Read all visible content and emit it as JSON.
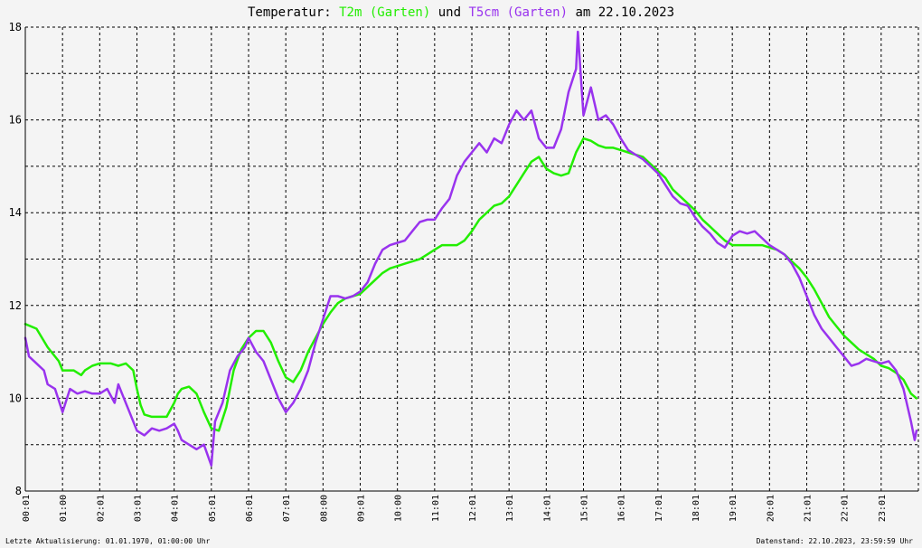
{
  "chart_data": {
    "type": "line",
    "title": {
      "prefix": "Temperatur: ",
      "series1_label": "T2m (Garten)",
      "connector": " und ",
      "series2_label": "T5cm (Garten)",
      "suffix": " am 22.10.2023"
    },
    "xlabel": "",
    "ylabel": "",
    "ylim": [
      8,
      18
    ],
    "yticks": [
      "8",
      "10",
      "12",
      "14",
      "16",
      "18"
    ],
    "xlim": [
      0,
      24
    ],
    "xticks": [
      "00:01",
      "01:00",
      "02:01",
      "03:01",
      "04:01",
      "05:01",
      "06:01",
      "07:01",
      "08:00",
      "09:01",
      "10:00",
      "11:01",
      "12:01",
      "13:01",
      "14:01",
      "15:01",
      "16:01",
      "17:01",
      "18:01",
      "19:01",
      "20:01",
      "21:01",
      "22:01",
      "23:01"
    ],
    "grid": true,
    "series": [
      {
        "name": "T2m (Garten)",
        "color": "#22ee00",
        "points": [
          [
            0,
            11.6
          ],
          [
            0.3,
            11.5
          ],
          [
            0.6,
            11.1
          ],
          [
            0.9,
            10.8
          ],
          [
            1.0,
            10.6
          ],
          [
            1.3,
            10.6
          ],
          [
            1.5,
            10.5
          ],
          [
            1.6,
            10.6
          ],
          [
            1.8,
            10.7
          ],
          [
            2.0,
            10.75
          ],
          [
            2.3,
            10.75
          ],
          [
            2.5,
            10.7
          ],
          [
            2.7,
            10.75
          ],
          [
            2.9,
            10.6
          ],
          [
            3.0,
            10.2
          ],
          [
            3.1,
            9.85
          ],
          [
            3.2,
            9.65
          ],
          [
            3.4,
            9.6
          ],
          [
            3.6,
            9.6
          ],
          [
            3.8,
            9.6
          ],
          [
            4.0,
            9.9
          ],
          [
            4.1,
            10.1
          ],
          [
            4.2,
            10.2
          ],
          [
            4.4,
            10.25
          ],
          [
            4.6,
            10.1
          ],
          [
            4.8,
            9.7
          ],
          [
            5.0,
            9.35
          ],
          [
            5.2,
            9.3
          ],
          [
            5.4,
            9.8
          ],
          [
            5.6,
            10.6
          ],
          [
            5.8,
            11.05
          ],
          [
            6.0,
            11.3
          ],
          [
            6.2,
            11.45
          ],
          [
            6.4,
            11.45
          ],
          [
            6.6,
            11.2
          ],
          [
            6.8,
            10.8
          ],
          [
            7.0,
            10.45
          ],
          [
            7.2,
            10.35
          ],
          [
            7.4,
            10.6
          ],
          [
            7.6,
            11.0
          ],
          [
            7.8,
            11.3
          ],
          [
            8.0,
            11.6
          ],
          [
            8.2,
            11.85
          ],
          [
            8.4,
            12.05
          ],
          [
            8.6,
            12.15
          ],
          [
            8.8,
            12.2
          ],
          [
            9.0,
            12.25
          ],
          [
            9.2,
            12.4
          ],
          [
            9.4,
            12.55
          ],
          [
            9.6,
            12.7
          ],
          [
            9.8,
            12.8
          ],
          [
            10.0,
            12.85
          ],
          [
            10.2,
            12.9
          ],
          [
            10.4,
            12.95
          ],
          [
            10.6,
            13.0
          ],
          [
            10.8,
            13.1
          ],
          [
            11.0,
            13.2
          ],
          [
            11.2,
            13.3
          ],
          [
            11.4,
            13.3
          ],
          [
            11.6,
            13.3
          ],
          [
            11.8,
            13.4
          ],
          [
            12.0,
            13.6
          ],
          [
            12.2,
            13.85
          ],
          [
            12.4,
            14.0
          ],
          [
            12.6,
            14.15
          ],
          [
            12.8,
            14.2
          ],
          [
            13.0,
            14.35
          ],
          [
            13.2,
            14.6
          ],
          [
            13.4,
            14.85
          ],
          [
            13.6,
            15.1
          ],
          [
            13.8,
            15.2
          ],
          [
            14.0,
            14.95
          ],
          [
            14.2,
            14.85
          ],
          [
            14.4,
            14.8
          ],
          [
            14.6,
            14.85
          ],
          [
            14.8,
            15.3
          ],
          [
            15.0,
            15.6
          ],
          [
            15.2,
            15.55
          ],
          [
            15.4,
            15.45
          ],
          [
            15.6,
            15.4
          ],
          [
            15.8,
            15.4
          ],
          [
            16.0,
            15.35
          ],
          [
            16.2,
            15.3
          ],
          [
            16.4,
            15.25
          ],
          [
            16.6,
            15.2
          ],
          [
            16.8,
            15.05
          ],
          [
            17.0,
            14.9
          ],
          [
            17.2,
            14.75
          ],
          [
            17.4,
            14.5
          ],
          [
            17.6,
            14.35
          ],
          [
            17.8,
            14.2
          ],
          [
            18.0,
            14.05
          ],
          [
            18.2,
            13.85
          ],
          [
            18.4,
            13.7
          ],
          [
            18.6,
            13.55
          ],
          [
            18.8,
            13.4
          ],
          [
            19.0,
            13.3
          ],
          [
            19.4,
            13.3
          ],
          [
            19.8,
            13.3
          ],
          [
            20.0,
            13.25
          ],
          [
            20.2,
            13.2
          ],
          [
            20.4,
            13.1
          ],
          [
            20.6,
            12.95
          ],
          [
            20.8,
            12.8
          ],
          [
            21.0,
            12.6
          ],
          [
            21.2,
            12.35
          ],
          [
            21.4,
            12.05
          ],
          [
            21.6,
            11.75
          ],
          [
            21.8,
            11.55
          ],
          [
            22.0,
            11.35
          ],
          [
            22.2,
            11.2
          ],
          [
            22.4,
            11.05
          ],
          [
            22.6,
            10.95
          ],
          [
            22.8,
            10.85
          ],
          [
            23.0,
            10.7
          ],
          [
            23.2,
            10.65
          ],
          [
            23.4,
            10.55
          ],
          [
            23.6,
            10.4
          ],
          [
            23.8,
            10.1
          ],
          [
            23.95,
            10.0
          ]
        ]
      },
      {
        "name": "T5cm (Garten)",
        "color": "#9933ee",
        "points": [
          [
            0,
            11.3
          ],
          [
            0.1,
            10.9
          ],
          [
            0.3,
            10.75
          ],
          [
            0.5,
            10.6
          ],
          [
            0.6,
            10.3
          ],
          [
            0.8,
            10.2
          ],
          [
            1.0,
            9.7
          ],
          [
            1.2,
            10.2
          ],
          [
            1.4,
            10.1
          ],
          [
            1.6,
            10.15
          ],
          [
            1.8,
            10.1
          ],
          [
            2.0,
            10.1
          ],
          [
            2.2,
            10.2
          ],
          [
            2.4,
            9.9
          ],
          [
            2.5,
            10.3
          ],
          [
            2.6,
            10.1
          ],
          [
            2.8,
            9.7
          ],
          [
            3.0,
            9.3
          ],
          [
            3.2,
            9.2
          ],
          [
            3.4,
            9.35
          ],
          [
            3.6,
            9.3
          ],
          [
            3.8,
            9.35
          ],
          [
            4.0,
            9.45
          ],
          [
            4.1,
            9.3
          ],
          [
            4.2,
            9.1
          ],
          [
            4.4,
            9.0
          ],
          [
            4.6,
            8.9
          ],
          [
            4.8,
            9.0
          ],
          [
            5.0,
            8.55
          ],
          [
            5.1,
            9.5
          ],
          [
            5.3,
            9.9
          ],
          [
            5.5,
            10.6
          ],
          [
            5.7,
            10.9
          ],
          [
            5.9,
            11.1
          ],
          [
            6.0,
            11.3
          ],
          [
            6.2,
            11.0
          ],
          [
            6.4,
            10.8
          ],
          [
            6.6,
            10.4
          ],
          [
            6.8,
            10.0
          ],
          [
            7.0,
            9.7
          ],
          [
            7.2,
            9.9
          ],
          [
            7.4,
            10.2
          ],
          [
            7.6,
            10.6
          ],
          [
            7.8,
            11.2
          ],
          [
            8.0,
            11.7
          ],
          [
            8.2,
            12.2
          ],
          [
            8.4,
            12.2
          ],
          [
            8.6,
            12.15
          ],
          [
            8.8,
            12.2
          ],
          [
            9.0,
            12.3
          ],
          [
            9.2,
            12.5
          ],
          [
            9.4,
            12.9
          ],
          [
            9.6,
            13.2
          ],
          [
            9.8,
            13.3
          ],
          [
            10.0,
            13.35
          ],
          [
            10.2,
            13.4
          ],
          [
            10.4,
            13.6
          ],
          [
            10.6,
            13.8
          ],
          [
            10.8,
            13.85
          ],
          [
            11.0,
            13.85
          ],
          [
            11.2,
            14.1
          ],
          [
            11.4,
            14.3
          ],
          [
            11.6,
            14.8
          ],
          [
            11.8,
            15.1
          ],
          [
            12.0,
            15.3
          ],
          [
            12.2,
            15.5
          ],
          [
            12.4,
            15.3
          ],
          [
            12.6,
            15.6
          ],
          [
            12.8,
            15.5
          ],
          [
            13.0,
            15.9
          ],
          [
            13.2,
            16.2
          ],
          [
            13.4,
            16.0
          ],
          [
            13.6,
            16.2
          ],
          [
            13.8,
            15.6
          ],
          [
            14.0,
            15.4
          ],
          [
            14.2,
            15.4
          ],
          [
            14.4,
            15.8
          ],
          [
            14.6,
            16.6
          ],
          [
            14.8,
            17.1
          ],
          [
            14.85,
            17.9
          ],
          [
            14.95,
            16.7
          ],
          [
            15.0,
            16.1
          ],
          [
            15.2,
            16.7
          ],
          [
            15.4,
            16.0
          ],
          [
            15.6,
            16.1
          ],
          [
            15.8,
            15.9
          ],
          [
            16.0,
            15.6
          ],
          [
            16.2,
            15.35
          ],
          [
            16.4,
            15.25
          ],
          [
            16.6,
            15.15
          ],
          [
            16.8,
            15.0
          ],
          [
            17.0,
            14.85
          ],
          [
            17.2,
            14.6
          ],
          [
            17.4,
            14.35
          ],
          [
            17.6,
            14.2
          ],
          [
            17.8,
            14.15
          ],
          [
            18.0,
            13.9
          ],
          [
            18.2,
            13.7
          ],
          [
            18.4,
            13.55
          ],
          [
            18.6,
            13.35
          ],
          [
            18.8,
            13.25
          ],
          [
            19.0,
            13.5
          ],
          [
            19.2,
            13.6
          ],
          [
            19.4,
            13.55
          ],
          [
            19.6,
            13.6
          ],
          [
            19.8,
            13.45
          ],
          [
            20.0,
            13.3
          ],
          [
            20.2,
            13.2
          ],
          [
            20.4,
            13.1
          ],
          [
            20.6,
            12.9
          ],
          [
            20.8,
            12.6
          ],
          [
            21.0,
            12.2
          ],
          [
            21.2,
            11.8
          ],
          [
            21.4,
            11.5
          ],
          [
            21.6,
            11.3
          ],
          [
            21.8,
            11.1
          ],
          [
            22.0,
            10.9
          ],
          [
            22.2,
            10.7
          ],
          [
            22.4,
            10.75
          ],
          [
            22.6,
            10.85
          ],
          [
            22.8,
            10.8
          ],
          [
            23.0,
            10.75
          ],
          [
            23.2,
            10.8
          ],
          [
            23.4,
            10.6
          ],
          [
            23.6,
            10.2
          ],
          [
            23.8,
            9.5
          ],
          [
            23.9,
            9.1
          ],
          [
            23.95,
            9.3
          ]
        ]
      }
    ]
  },
  "footer": {
    "left": "Letzte Aktualisierung: 01.01.1970, 01:00:00 Uhr",
    "right": "Datenstand: 22.10.2023, 23:59:59 Uhr"
  },
  "colors": {
    "background": "#f4f4f4",
    "title_t2m": "#22ee00",
    "title_t5cm": "#9933ee",
    "grid": "#000000"
  }
}
